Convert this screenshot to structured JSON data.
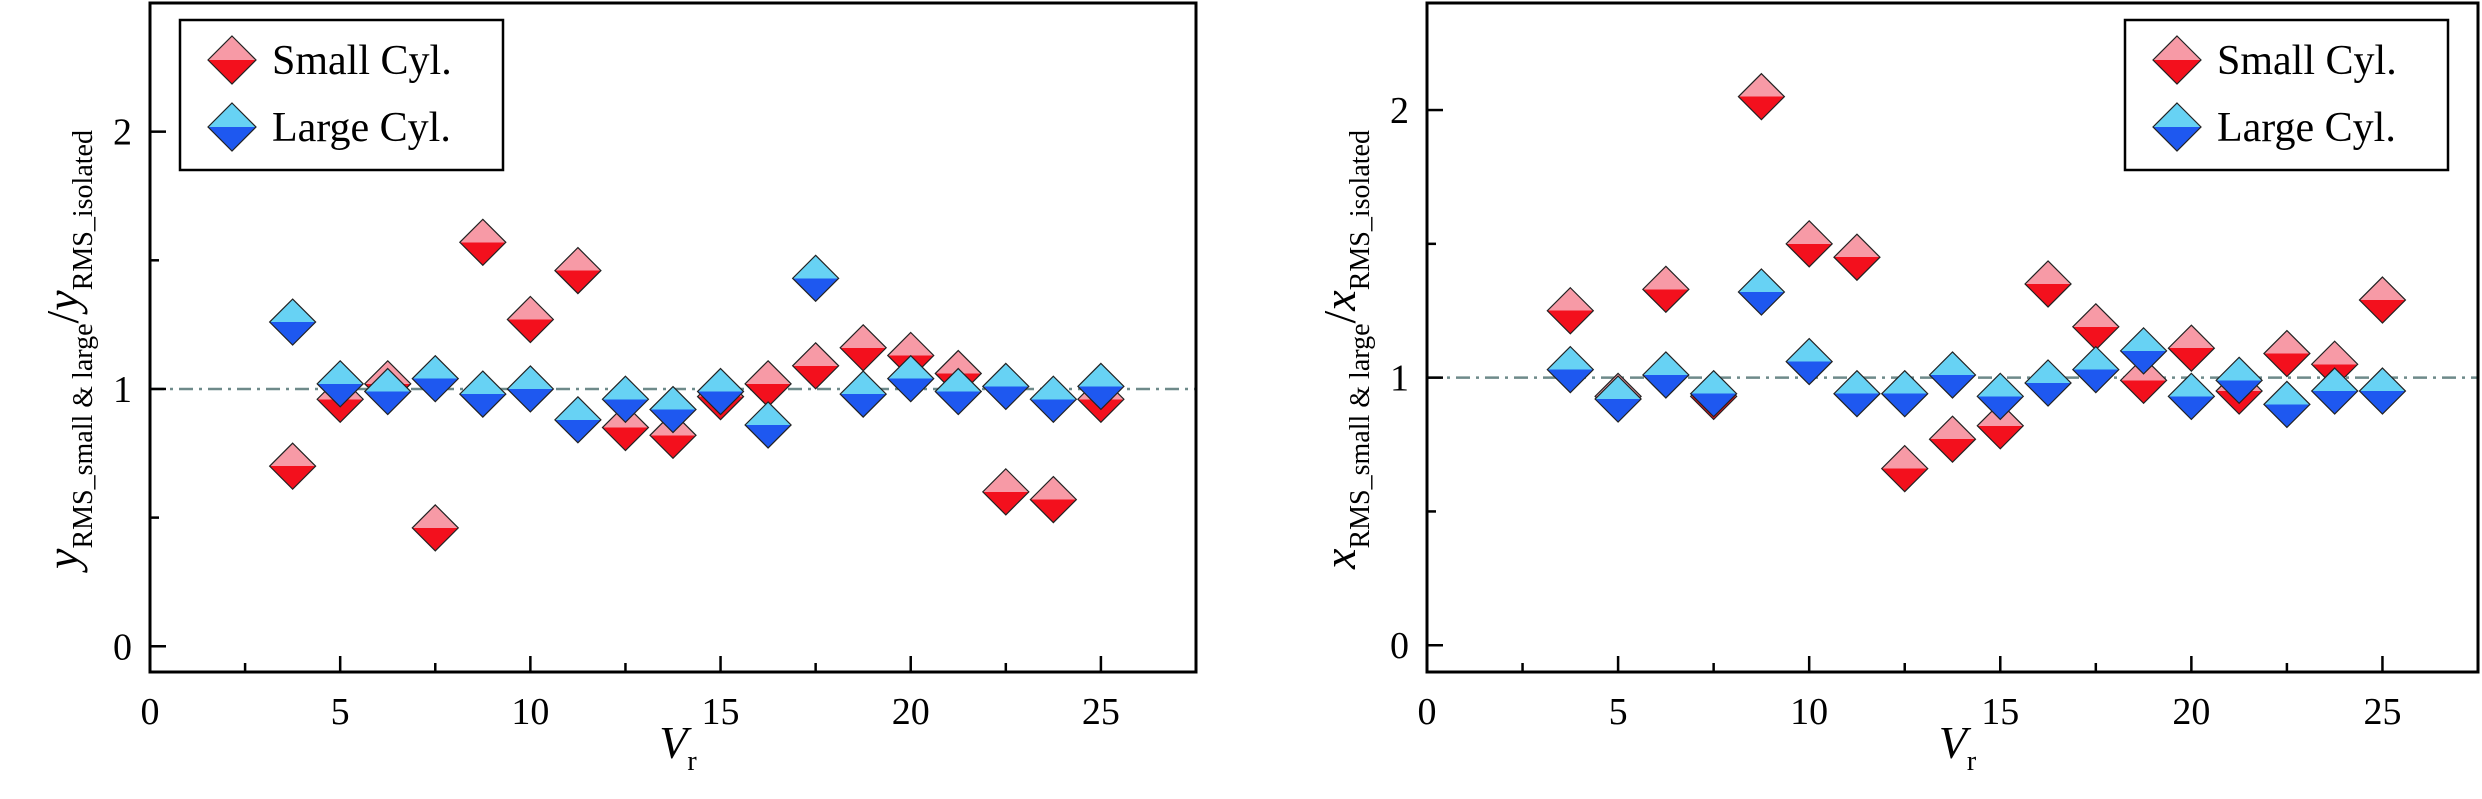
{
  "colors": {
    "small_top": "#f79aa6",
    "small_bottom": "#f3101d",
    "large_top": "#67d2f4",
    "large_bottom": "#1e58f0",
    "ref_line": "#6e8a8a",
    "frame": "#000000"
  },
  "chart_data": [
    {
      "type": "scatter",
      "marker": "diamond",
      "xlabel": "V",
      "xlabel_sub": "r",
      "ylabel_main": "y",
      "ylabel_sub": "RMS_small & large",
      "ylabel_main2": "y",
      "ylabel_sub2": "RMS_isolated",
      "xlim": [
        0,
        27.5
      ],
      "ylim": [
        -0.1,
        2.5
      ],
      "xticks": [
        0,
        5,
        10,
        15,
        20,
        25
      ],
      "yticks": [
        0,
        1,
        2
      ],
      "ref_line": 1,
      "grid": false,
      "legend_position": "top-left",
      "series": [
        {
          "name": "Small Cyl.",
          "x": [
            3.75,
            5,
            6.25,
            7.5,
            8.75,
            10,
            11.25,
            12.5,
            13.75,
            15,
            16.25,
            17.5,
            18.75,
            20,
            21.25,
            22.5,
            23.75,
            25
          ],
          "y": [
            0.7,
            0.96,
            1.02,
            0.46,
            1.57,
            1.27,
            1.46,
            0.85,
            0.82,
            0.97,
            1.02,
            1.09,
            1.16,
            1.13,
            1.06,
            0.6,
            0.57,
            0.96
          ]
        },
        {
          "name": "Large Cyl.",
          "x": [
            3.75,
            5,
            6.25,
            7.5,
            8.75,
            10,
            11.25,
            12.5,
            13.75,
            15,
            16.25,
            17.5,
            18.75,
            20,
            21.25,
            22.5,
            23.75,
            25
          ],
          "y": [
            1.26,
            1.02,
            0.99,
            1.04,
            0.98,
            1.0,
            0.88,
            0.96,
            0.92,
            0.99,
            0.86,
            1.43,
            0.98,
            1.04,
            0.99,
            1.01,
            0.96,
            1.01
          ]
        }
      ],
      "legend": [
        "Small Cyl.",
        "Large Cyl."
      ]
    },
    {
      "type": "scatter",
      "marker": "diamond",
      "xlabel": "V",
      "xlabel_sub": "r",
      "ylabel_main": "x",
      "ylabel_sub": "RMS_small & large",
      "ylabel_main2": "x",
      "ylabel_sub2": "RMS_isolated",
      "xlim": [
        0,
        27.5
      ],
      "ylim": [
        -0.1,
        2.4
      ],
      "xticks": [
        0,
        5,
        10,
        15,
        20,
        25
      ],
      "yticks": [
        0,
        1,
        2
      ],
      "ref_line": 1,
      "grid": false,
      "legend_position": "top-right",
      "series": [
        {
          "name": "Small Cyl.",
          "x": [
            3.75,
            5,
            6.25,
            7.5,
            8.75,
            10,
            11.25,
            12.5,
            13.75,
            15,
            16.25,
            17.5,
            18.75,
            20,
            21.25,
            22.5,
            23.75,
            25
          ],
          "y": [
            1.25,
            0.93,
            1.33,
            0.93,
            2.05,
            1.5,
            1.45,
            0.66,
            0.77,
            0.82,
            1.35,
            1.19,
            0.99,
            1.11,
            0.95,
            1.09,
            1.05,
            1.29
          ]
        },
        {
          "name": "Large Cyl.",
          "x": [
            3.75,
            5,
            6.25,
            7.5,
            8.75,
            10,
            11.25,
            12.5,
            13.75,
            15,
            16.25,
            17.5,
            18.75,
            20,
            21.25,
            22.5,
            23.75,
            25
          ],
          "y": [
            1.03,
            0.92,
            1.01,
            0.94,
            1.32,
            1.06,
            0.94,
            0.94,
            1.01,
            0.93,
            0.98,
            1.03,
            1.1,
            0.93,
            0.99,
            0.9,
            0.95,
            0.95
          ]
        }
      ],
      "legend": [
        "Small Cyl.",
        "Large Cyl."
      ]
    }
  ]
}
